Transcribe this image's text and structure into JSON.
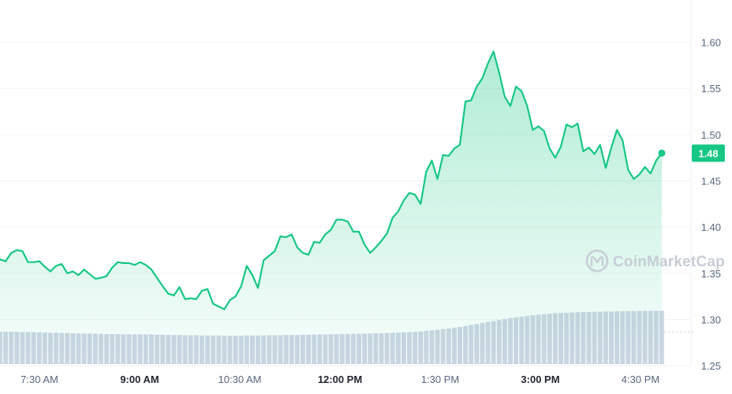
{
  "watermark": {
    "text": "CoinMarketCap",
    "icon": "coinmarketcap-logo-icon"
  },
  "colors": {
    "line": "#16c784",
    "area_top": "#16c784",
    "volume": "#cfd6e4",
    "badge": "#16c784",
    "grid": "#eff2f5"
  },
  "chart_data": {
    "type": "line",
    "y_ticks": [
      "1.60",
      "1.55",
      "1.50",
      "1.45",
      "1.40",
      "1.35",
      "1.30",
      "1.25"
    ],
    "y_tick_values": [
      1.6,
      1.55,
      1.5,
      1.45,
      1.4,
      1.35,
      1.3,
      1.25
    ],
    "ylim": [
      1.2236,
      1.6457
    ],
    "x_ticks": [
      {
        "label": "7:30 AM",
        "bold": false
      },
      {
        "label": "9:00 AM",
        "bold": true
      },
      {
        "label": "10:30 AM",
        "bold": false
      },
      {
        "label": "12:00 PM",
        "bold": true
      },
      {
        "label": "1:30 PM",
        "bold": false
      },
      {
        "label": "3:00 PM",
        "bold": true
      },
      {
        "label": "4:30 PM",
        "bold": false
      }
    ],
    "current_price": "1.48",
    "grid": true,
    "series": [
      {
        "values": [
          1.365,
          1.363,
          1.372,
          1.375,
          1.374,
          1.362,
          1.362,
          1.363,
          1.357,
          1.352,
          1.358,
          1.36,
          1.35,
          1.352,
          1.348,
          1.354,
          1.349,
          1.344,
          1.345,
          1.347,
          1.356,
          1.362,
          1.361,
          1.361,
          1.359,
          1.362,
          1.359,
          1.354,
          1.345,
          1.336,
          1.328,
          1.326,
          1.335,
          1.322,
          1.323,
          1.322,
          1.331,
          1.333,
          1.317,
          1.314,
          1.311,
          1.321,
          1.325,
          1.336,
          1.358,
          1.348,
          1.334,
          1.364,
          1.369,
          1.374,
          1.39,
          1.389,
          1.392,
          1.378,
          1.372,
          1.37,
          1.384,
          1.383,
          1.392,
          1.397,
          1.408,
          1.408,
          1.406,
          1.395,
          1.395,
          1.381,
          1.372,
          1.378,
          1.385,
          1.393,
          1.41,
          1.417,
          1.429,
          1.437,
          1.435,
          1.425,
          1.46,
          1.472,
          1.452,
          1.478,
          1.477,
          1.485,
          1.489,
          1.536,
          1.537,
          1.552,
          1.561,
          1.577,
          1.59,
          1.567,
          1.541,
          1.531,
          1.552,
          1.547,
          1.531,
          1.505,
          1.509,
          1.504,
          1.485,
          1.475,
          1.487,
          1.511,
          1.508,
          1.512,
          1.482,
          1.486,
          1.479,
          1.489,
          1.464,
          1.486,
          1.505,
          1.494,
          1.462,
          1.452,
          1.457,
          1.465,
          1.458,
          1.472,
          1.48
        ]
      },
      {
        "name": "volume",
        "values": [
          13.2,
          13.2,
          13.2,
          13.2,
          13.1,
          13.1,
          13.1,
          13.0,
          12.9,
          12.8,
          12.8,
          12.7,
          12.7,
          12.6,
          12.5,
          12.5,
          12.5,
          12.4,
          12.4,
          12.3,
          12.3,
          12.3,
          12.2,
          12.2,
          12.2,
          12.2,
          12.1,
          12.1,
          12.0,
          12.0,
          11.9,
          11.9,
          11.9,
          11.8,
          11.8,
          11.8,
          11.7,
          11.7,
          11.7,
          11.7,
          11.6,
          11.6,
          11.6,
          11.6,
          11.7,
          11.7,
          11.7,
          11.7,
          11.8,
          11.8,
          11.8,
          11.9,
          11.9,
          11.9,
          12.0,
          12.0,
          12.1,
          12.1,
          12.1,
          12.2,
          12.2,
          12.3,
          12.3,
          12.4,
          12.4,
          12.5,
          12.5,
          12.6,
          12.6,
          12.7,
          12.8,
          12.9,
          13.0,
          13.1,
          13.2,
          13.4,
          13.6,
          13.8,
          14.0,
          14.3,
          14.6,
          14.9,
          15.2,
          15.6,
          16.0,
          16.4,
          16.8,
          17.2,
          17.6,
          18.0,
          18.4,
          18.8,
          19.1,
          19.4,
          19.7,
          20.0,
          20.2,
          20.4,
          20.6,
          20.8,
          20.9,
          21.0,
          21.1,
          21.2,
          21.3,
          21.3,
          21.4,
          21.4,
          21.5,
          21.5,
          21.6,
          21.6,
          21.7,
          21.7,
          21.8,
          21.8,
          21.8,
          21.8,
          21.8
        ]
      }
    ]
  }
}
